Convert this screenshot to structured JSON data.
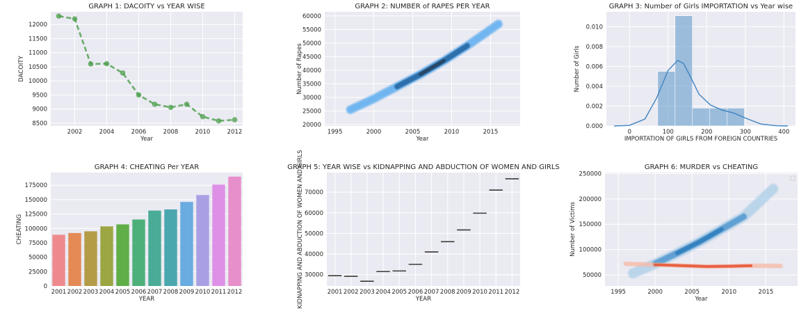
{
  "chart_data": [
    {
      "type": "line",
      "title": "GRAPH 1: DACOITY vs YEAR WISE",
      "xlabel": "Year",
      "ylabel": "DACOITY",
      "x": [
        2001,
        2002,
        2003,
        2004,
        2005,
        2006,
        2007,
        2008,
        2009,
        2010,
        2011,
        2012
      ],
      "values": [
        12300,
        12200,
        10600,
        10610,
        10280,
        9500,
        9170,
        9060,
        9170,
        8730,
        8580,
        8620
      ],
      "xticks": [
        2002,
        2004,
        2006,
        2008,
        2010,
        2012
      ],
      "yticks": [
        8500,
        9000,
        9500,
        10000,
        10500,
        11000,
        11500,
        12000
      ],
      "xlim": [
        2000.5,
        2012.5
      ],
      "ylim": [
        8400,
        12450
      ],
      "line_color": "#4a9e48",
      "grid": true
    },
    {
      "type": "area",
      "title": "GRAPH 2: NUMBER of RAPES PER YEAR",
      "xlabel": "Year",
      "ylabel": "Number of Rapes",
      "x": [
        1997,
        2000,
        2003,
        2006,
        2009,
        2012,
        2016
      ],
      "values": [
        25500,
        29500,
        34000,
        38500,
        43500,
        49000,
        57000
      ],
      "xticks": [
        1995,
        2000,
        2005,
        2010,
        2015
      ],
      "yticks": [
        20000,
        25000,
        30000,
        35000,
        40000,
        45000,
        50000,
        55000,
        60000
      ],
      "xlim": [
        1993.7,
        2018.8
      ],
      "ylim": [
        19500,
        61500
      ],
      "color": "#2f8be6",
      "grid": true
    },
    {
      "type": "bar",
      "title": "GRAPH 3: Number of Girls IMPORTATION vs Year wise",
      "xlabel": "IMPORTATION OF GIRLS FROM FOREIGN COUNTRIES",
      "ylabel": "Number of Girls",
      "bins": [
        [
          73,
          118
        ],
        [
          118,
          163
        ],
        [
          163,
          208
        ],
        [
          208,
          253
        ],
        [
          253,
          298
        ]
      ],
      "values": [
        0.0055,
        0.0111,
        0.0018,
        0.0018,
        0.0018
      ],
      "kde_x": [
        -40,
        0,
        40,
        70,
        100,
        125,
        140,
        160,
        180,
        210,
        240,
        270,
        300,
        340,
        380,
        410
      ],
      "kde_y": [
        0.0,
        6e-05,
        0.0007,
        0.0028,
        0.0056,
        0.0066,
        0.0063,
        0.0048,
        0.0032,
        0.0021,
        0.0016,
        0.0013,
        0.0008,
        0.0002,
        2e-05,
        0.0
      ],
      "xticks": [
        0,
        100,
        200,
        300,
        400
      ],
      "yticks": [
        0.0,
        0.002,
        0.004,
        0.006,
        0.008,
        0.01
      ],
      "ytick_labels": [
        "0.000",
        "0.002",
        "0.004",
        "0.006",
        "0.008",
        "0.010"
      ],
      "xlim": [
        -60,
        430
      ],
      "ylim": [
        0,
        0.0115
      ],
      "color": "#5a96c8",
      "grid": true
    },
    {
      "type": "bar",
      "title": "GRAPH 4: CHEATING Per YEAR",
      "xlabel": "YEAR",
      "ylabel": "CHEATING",
      "categories": [
        "2001",
        "2002",
        "2003",
        "2004",
        "2005",
        "2006",
        "2007",
        "2008",
        "2009",
        "2010",
        "2011",
        "2012"
      ],
      "values": [
        89000,
        92000,
        95000,
        103500,
        107000,
        115500,
        131000,
        133000,
        146000,
        158000,
        176000,
        190000
      ],
      "colors": [
        "#ee8a8d",
        "#e38a55",
        "#b49c47",
        "#9ca642",
        "#5fae48",
        "#4db07a",
        "#4aab96",
        "#4aa7ad",
        "#6aabe0",
        "#a9a0e4",
        "#de90e6",
        "#e78fca"
      ],
      "yticks": [
        0,
        25000,
        50000,
        75000,
        100000,
        125000,
        150000,
        175000
      ],
      "ylim": [
        0,
        197000
      ],
      "grid": true
    },
    {
      "type": "scatter",
      "title": "GRAPH 5: YEAR WISE vs KIDNAPPING AND ABDUCTION OF WOMEN AND GIRLS",
      "xlabel": "YEAR",
      "ylabel": "KIDNAPPING AND ABDUCTION OF WOMEN AND GIRLS",
      "categories": [
        "2001",
        "2002",
        "2003",
        "2004",
        "2005",
        "2006",
        "2007",
        "2008",
        "2009",
        "2010",
        "2011",
        "2012"
      ],
      "values": [
        29500,
        29200,
        26800,
        31500,
        31800,
        35000,
        41000,
        46000,
        51700,
        59800,
        71000,
        76500
      ],
      "yticks": [
        30000,
        40000,
        50000,
        60000,
        70000
      ],
      "ylim": [
        24500,
        79500
      ],
      "grid": true
    },
    {
      "type": "area",
      "title": "GRAPH 6: MURDER vs CHEATING",
      "xlabel": "Year",
      "ylabel": "Number of Victims",
      "series": [
        {
          "x": [
            1997,
            2000,
            2003,
            2006,
            2009,
            2012,
            2016
          ],
          "values": [
            53000,
            72000,
            93000,
            115000,
            140000,
            165000,
            220000
          ],
          "color": "#2b7bba"
        },
        {
          "x": [
            1996,
            2000,
            2004,
            2007,
            2010,
            2013,
            2017
          ],
          "values": [
            72000,
            70000,
            68000,
            66500,
            67000,
            68000,
            67500
          ],
          "color": "#e6401e"
        }
      ],
      "xticks": [
        1995,
        2000,
        2005,
        2010,
        2015
      ],
      "yticks": [
        50000,
        100000,
        150000,
        200000,
        250000
      ],
      "xlim": [
        1993.2,
        2019.3
      ],
      "ylim": [
        28000,
        252000
      ],
      "grid": true
    }
  ]
}
